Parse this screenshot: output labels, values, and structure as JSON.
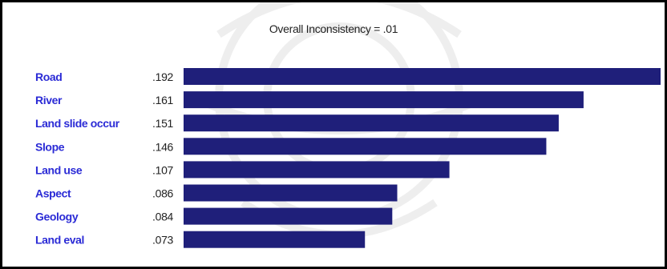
{
  "chart_data": {
    "type": "bar",
    "orientation": "horizontal",
    "title": "Overall Inconsistency = .01",
    "categories": [
      "Road",
      "River",
      "Land slide occur",
      "Slope",
      "Land use",
      "Aspect",
      "Geology",
      "Land eval"
    ],
    "values": [
      0.192,
      0.161,
      0.151,
      0.146,
      0.107,
      0.086,
      0.084,
      0.073
    ],
    "value_labels": [
      ".192",
      ".161",
      ".151",
      ".146",
      ".107",
      ".086",
      ".084",
      ".073"
    ],
    "xlim": [
      0,
      0.192
    ],
    "grid": false,
    "legend": "none",
    "colors": {
      "bar": "#1f1f7a",
      "bar_highlight": "#0d0d5c",
      "category_label": "#2b2bd6",
      "value_label": "#222222",
      "border": "#000000"
    }
  }
}
